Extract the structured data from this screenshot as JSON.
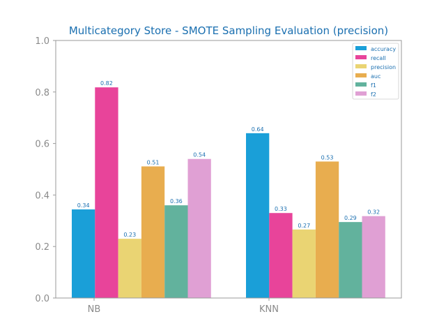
{
  "chart_data": {
    "type": "bar",
    "title": "Multicategory Store - SMOTE Sampling Evaluation (precision)",
    "xlabel": "",
    "ylabel": "",
    "categories": [
      "NB",
      "KNN"
    ],
    "ylim": [
      0,
      1.0
    ],
    "yticks": [
      "0.0",
      "0.2",
      "0.4",
      "0.6",
      "0.8",
      "1.0"
    ],
    "grid": false,
    "legend_position": "top-right",
    "series": [
      {
        "name": "accuracy",
        "color": "#1a9fd8",
        "values": [
          0.344,
          0.64
        ],
        "labels": [
          "0.34",
          "0.64"
        ]
      },
      {
        "name": "recall",
        "color": "#e8449a",
        "values": [
          0.818,
          0.33
        ],
        "labels": [
          "0.82",
          "0.33"
        ]
      },
      {
        "name": "precision",
        "color": "#ead473",
        "values": [
          0.23,
          0.266
        ],
        "labels": [
          "0.23",
          "0.27"
        ]
      },
      {
        "name": "auc",
        "color": "#e8ad4f",
        "values": [
          0.511,
          0.53
        ],
        "labels": [
          "0.51",
          "0.53"
        ]
      },
      {
        "name": "f1",
        "color": "#62b29d",
        "values": [
          0.36,
          0.295
        ],
        "labels": [
          "0.36",
          "0.29"
        ]
      },
      {
        "name": "f2",
        "color": "#e0a0d4",
        "values": [
          0.54,
          0.318
        ],
        "labels": [
          "0.54",
          "0.32"
        ]
      }
    ]
  }
}
